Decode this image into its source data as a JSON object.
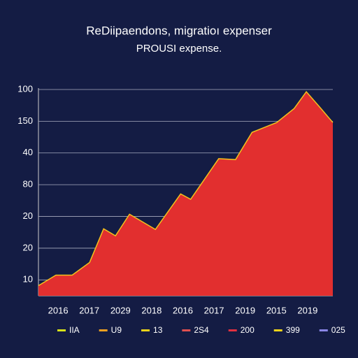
{
  "chart_data": {
    "type": "area",
    "title": "ReDiipaendons, migratioı expenser",
    "subtitle": "PROUSI expense.",
    "x": [
      -0.63,
      -0.07,
      0.45,
      1.01,
      1.46,
      1.84,
      2.29,
      3.12,
      3.93,
      4.25,
      5.15,
      5.69,
      6.22,
      7.01,
      7.57,
      7.96,
      8.43,
      8.81
    ],
    "values": [
      -0.18,
      0.15,
      0.15,
      0.55,
      1.61,
      1.39,
      2.07,
      1.59,
      2.71,
      2.54,
      3.82,
      3.79,
      4.65,
      4.96,
      5.4,
      5.93,
      5.4,
      4.96
    ],
    "color": "#e22f2f",
    "line_color": "#f2c21c",
    "xlim": [
      -0.63,
      8.81
    ],
    "xticks": [
      {
        "value": 0,
        "label": "2016"
      },
      {
        "value": 1,
        "label": "2017"
      },
      {
        "value": 2,
        "label": "2029"
      },
      {
        "value": 3,
        "label": "2018"
      },
      {
        "value": 4,
        "label": "2016"
      },
      {
        "value": 5,
        "label": "2017"
      },
      {
        "value": 6,
        "label": "2019"
      },
      {
        "value": 7,
        "label": "2015"
      },
      {
        "value": 8,
        "label": "2019"
      }
    ],
    "ylim": [
      -0.5,
      6
    ],
    "yticks": [
      {
        "value": 0,
        "label": "10"
      },
      {
        "value": 1,
        "label": "20"
      },
      {
        "value": 2,
        "label": "20"
      },
      {
        "value": 3,
        "label": "80"
      },
      {
        "value": 4,
        "label": "40"
      },
      {
        "value": 5,
        "label": "150"
      },
      {
        "value": 6,
        "label": "100"
      }
    ],
    "grid": true,
    "legend": [
      {
        "name": "IIA",
        "color": "#d7e21a"
      },
      {
        "name": "U9",
        "color": "#f0a020"
      },
      {
        "name": "13",
        "color": "#ead21a"
      },
      {
        "name": "2S4",
        "color": "#e05050"
      },
      {
        "name": "200",
        "color": "#e23040"
      },
      {
        "name": "399",
        "color": "#f2d41a"
      },
      {
        "name": "025",
        "color": "#8a86e6"
      }
    ]
  }
}
